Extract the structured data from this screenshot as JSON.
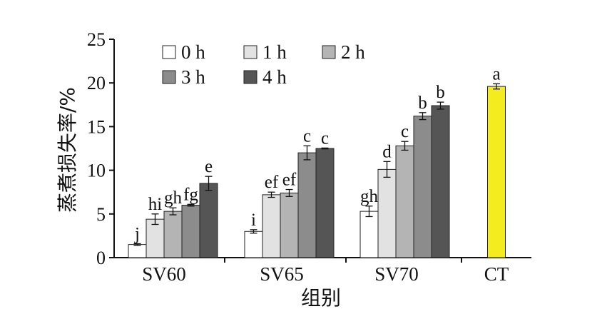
{
  "chart_data": {
    "type": "bar",
    "xlabel": "组别",
    "ylabel": "蒸煮损失率/%",
    "ylim": [
      0,
      25
    ],
    "yticks": [
      0,
      5,
      10,
      15,
      20,
      25
    ],
    "categories": [
      "SV60",
      "SV65",
      "SV70",
      "CT"
    ],
    "legend_placement": "top-left",
    "grid": false,
    "series": [
      {
        "name": "0 h",
        "color": "#ffffff",
        "values": [
          1.5,
          3.0,
          5.3,
          null
        ],
        "errors": [
          0.1,
          0.2,
          0.6,
          null
        ],
        "labels": [
          "j",
          "i",
          "gh",
          null
        ]
      },
      {
        "name": "1 h",
        "color": "#e2e2e2",
        "values": [
          4.4,
          7.2,
          10.1,
          null
        ],
        "errors": [
          0.6,
          0.3,
          0.9,
          null
        ],
        "labels": [
          "hi",
          "ef",
          "d",
          null
        ]
      },
      {
        "name": "2 h",
        "color": "#b4b4b4",
        "values": [
          5.3,
          7.4,
          12.8,
          null
        ],
        "errors": [
          0.4,
          0.4,
          0.5,
          null
        ],
        "labels": [
          "gh",
          "ef",
          "c",
          null
        ]
      },
      {
        "name": "3 h",
        "color": "#8c8c8c",
        "values": [
          6.0,
          12.0,
          16.2,
          null
        ],
        "errors": [
          0.1,
          0.8,
          0.4,
          null
        ],
        "labels": [
          "fg",
          "c",
          "b",
          null
        ]
      },
      {
        "name": "4 h",
        "color": "#555555",
        "values": [
          8.5,
          12.5,
          17.4,
          null
        ],
        "errors": [
          0.8,
          0.05,
          0.4,
          null
        ],
        "labels": [
          "e",
          "c",
          "b",
          null
        ]
      }
    ],
    "control": {
      "category": "CT",
      "value": 19.6,
      "error": 0.3,
      "label": "a",
      "color": "#f5ec1f"
    }
  }
}
